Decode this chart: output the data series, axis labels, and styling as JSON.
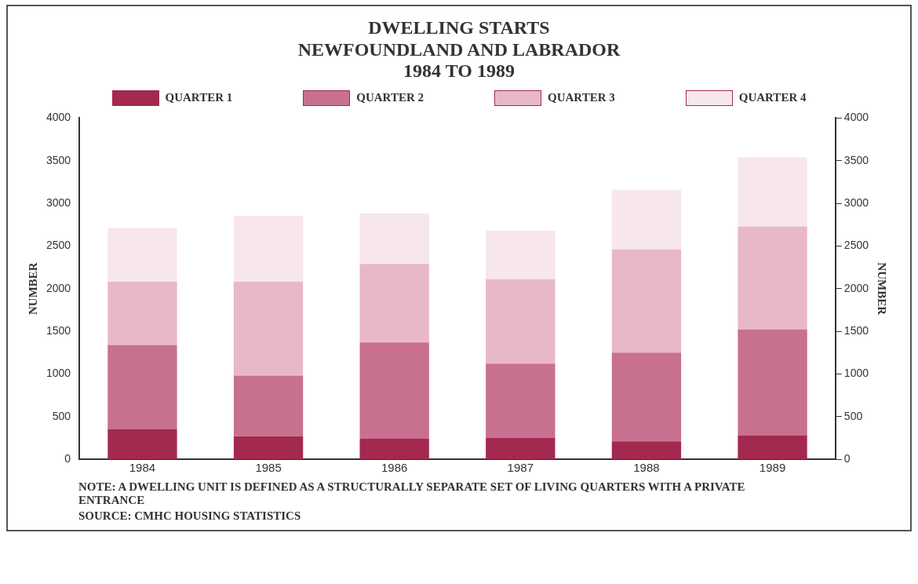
{
  "chart_data": {
    "type": "bar",
    "stacked": true,
    "title": "DWELLING STARTS",
    "subtitle": "NEWFOUNDLAND AND LABRADOR\n1984 TO 1989",
    "ylabel": "NUMBER",
    "y2label": "NUMBER",
    "categories": [
      "1984",
      "1985",
      "1986",
      "1987",
      "1988",
      "1989"
    ],
    "series": [
      {
        "name": "QUARTER 1",
        "color": "#a3294f",
        "values": [
          350,
          270,
          240,
          250,
          210,
          280
        ]
      },
      {
        "name": "QUARTER 2",
        "color": "#c8708f",
        "values": [
          990,
          710,
          1130,
          870,
          1040,
          1240
        ]
      },
      {
        "name": "QUARTER 3",
        "color": "#e8b8c8",
        "values": [
          740,
          1100,
          920,
          990,
          1210,
          1210
        ]
      },
      {
        "name": "QUARTER 4",
        "color": "#f8e6ed",
        "values": [
          630,
          770,
          590,
          570,
          700,
          810
        ]
      }
    ],
    "ylim": [
      0,
      4000
    ],
    "yticks": [
      0,
      500,
      1000,
      1500,
      2000,
      2500,
      3000,
      3500,
      4000
    ],
    "y2lim": [
      0,
      4000
    ],
    "y2ticks": [
      0,
      500,
      1000,
      1500,
      2000,
      2500,
      3000,
      3500,
      4000
    ],
    "grid": false,
    "legend": "top",
    "annotations": [
      "NOTE:   A DWELLING UNIT IS DEFINED AS A STRUCTURALLY SEPARATE SET OF LIVING QUARTERS WITH A PRIVATE ENTRANCE",
      "SOURCE: CMHC HOUSING STATISTICS"
    ]
  }
}
